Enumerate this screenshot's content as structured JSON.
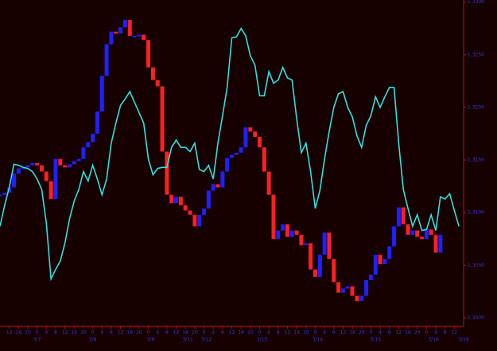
{
  "chart_data": {
    "type": "line",
    "background": "#160000",
    "axis_color": "#c01010",
    "label_color": "#3838d8",
    "x": [
      0,
      2,
      4,
      6,
      8,
      10,
      12,
      14,
      16,
      18,
      20,
      22,
      24,
      26,
      28,
      30,
      32,
      34,
      36,
      38,
      40,
      42,
      44,
      46,
      48,
      50,
      52,
      54,
      56,
      58,
      60,
      62,
      64,
      66,
      68,
      70,
      72,
      74,
      76,
      78,
      80,
      82,
      84,
      86,
      88,
      90,
      92,
      94,
      96,
      98,
      100,
      102,
      104,
      106,
      108,
      110,
      112,
      114,
      116,
      118,
      120,
      122,
      124,
      126,
      128,
      130,
      132,
      134,
      136,
      138,
      140,
      142,
      144,
      146,
      148,
      150,
      152,
      154,
      156,
      158,
      160,
      162,
      164,
      166,
      168,
      170,
      172,
      174,
      176,
      178,
      180,
      182,
      184,
      186,
      188,
      190,
      192,
      194,
      196,
      198
    ],
    "xlim": [
      0,
      200
    ],
    "xticks": [
      {
        "value": 4,
        "label": "12"
      },
      {
        "value": 8,
        "label": "16"
      },
      {
        "value": 12,
        "label": "20"
      },
      {
        "value": 16,
        "label": "0"
      },
      {
        "value": 20,
        "label": "4"
      },
      {
        "value": 24,
        "label": "8"
      },
      {
        "value": 28,
        "label": "12"
      },
      {
        "value": 32,
        "label": "16"
      },
      {
        "value": 36,
        "label": "20"
      },
      {
        "value": 40,
        "label": "0"
      },
      {
        "value": 44,
        "label": "4"
      },
      {
        "value": 48,
        "label": "8"
      },
      {
        "value": 52,
        "label": "12"
      },
      {
        "value": 56,
        "label": "16"
      },
      {
        "value": 60,
        "label": "20"
      },
      {
        "value": 64,
        "label": "0"
      },
      {
        "value": 68,
        "label": "4"
      },
      {
        "value": 72,
        "label": "8"
      },
      {
        "value": 76,
        "label": "12"
      },
      {
        "value": 80,
        "label": "16"
      },
      {
        "value": 84,
        "label": "20"
      },
      {
        "value": 88,
        "label": "0"
      },
      {
        "value": 92,
        "label": "4"
      },
      {
        "value": 96,
        "label": "8"
      },
      {
        "value": 100,
        "label": "12"
      },
      {
        "value": 104,
        "label": "16"
      },
      {
        "value": 108,
        "label": "20"
      },
      {
        "value": 112,
        "label": "0"
      },
      {
        "value": 116,
        "label": "4"
      },
      {
        "value": 120,
        "label": "8"
      },
      {
        "value": 124,
        "label": "12"
      },
      {
        "value": 128,
        "label": "16"
      },
      {
        "value": 132,
        "label": "20"
      },
      {
        "value": 136,
        "label": "0"
      },
      {
        "value": 140,
        "label": "4"
      },
      {
        "value": 144,
        "label": "8"
      },
      {
        "value": 148,
        "label": "12"
      },
      {
        "value": 152,
        "label": "16"
      },
      {
        "value": 156,
        "label": "20"
      },
      {
        "value": 160,
        "label": "0"
      },
      {
        "value": 164,
        "label": "4"
      },
      {
        "value": 168,
        "label": "8"
      },
      {
        "value": 172,
        "label": "12"
      },
      {
        "value": 176,
        "label": "16"
      },
      {
        "value": 180,
        "label": "20"
      },
      {
        "value": 184,
        "label": "0"
      },
      {
        "value": 188,
        "label": "4"
      },
      {
        "value": 192,
        "label": "8"
      },
      {
        "value": 196,
        "label": "12"
      }
    ],
    "date_ticks": [
      {
        "value": 16,
        "label": "3/7"
      },
      {
        "value": 40,
        "label": "3/8"
      },
      {
        "value": 65,
        "label": "3/9"
      },
      {
        "value": 81,
        "label": "3/11"
      },
      {
        "value": 89,
        "label": "3/12"
      },
      {
        "value": 113,
        "label": "3/13"
      },
      {
        "value": 137,
        "label": "3/14"
      },
      {
        "value": 162,
        "label": "3/15"
      },
      {
        "value": 187,
        "label": "3/16"
      },
      {
        "value": 200,
        "label": "3/18"
      }
    ],
    "ylim": [
      1.2992,
      1.3302
    ],
    "yticks": [
      {
        "value": 1.3,
        "label": "1.3000"
      },
      {
        "value": 1.305,
        "label": "1.3050"
      },
      {
        "value": 1.31,
        "label": "1.3100"
      },
      {
        "value": 1.315,
        "label": "1.3150"
      },
      {
        "value": 1.32,
        "label": "1.3200"
      },
      {
        "value": 1.325,
        "label": "1.3250"
      },
      {
        "value": 1.33,
        "label": "1.3300"
      }
    ],
    "series": [
      {
        "type": "bar",
        "up_color": "#2020ff",
        "down_color": "#ff2020",
        "values": [
          1.3117,
          1.3119,
          1.3124,
          1.3137,
          1.3142,
          1.3143,
          1.3145,
          1.3147,
          1.3145,
          1.3139,
          1.313,
          1.3113,
          1.3151,
          1.3145,
          1.3143,
          1.3146,
          1.3149,
          1.3151,
          1.3162,
          1.3167,
          1.3175,
          1.3196,
          1.323,
          1.326,
          1.3272,
          1.327,
          1.3276,
          1.3283,
          1.3268,
          1.3268,
          1.3269,
          1.3264,
          1.3238,
          1.3226,
          1.322,
          1.3158,
          1.3117,
          1.3109,
          1.3115,
          1.3107,
          1.3102,
          1.3098,
          1.3087,
          1.3098,
          1.3104,
          1.3121,
          1.3127,
          1.3124,
          1.3139,
          1.3152,
          1.3155,
          1.3157,
          1.3162,
          1.3181,
          1.3177,
          1.3172,
          1.3162,
          1.3139,
          1.3117,
          1.3075,
          1.3083,
          1.3089,
          1.3077,
          1.3083,
          1.3079,
          1.3069,
          1.3071,
          1.3046,
          1.3039,
          1.306,
          1.3081,
          1.3056,
          1.3034,
          1.3024,
          1.3028,
          1.303,
          1.3021,
          1.3016,
          1.3021,
          1.3036,
          1.3041,
          1.306,
          1.3051,
          1.3056,
          1.3068,
          1.3087,
          1.3105,
          1.3089,
          1.3079,
          1.3083,
          1.3077,
          1.3075,
          1.3084,
          1.3079,
          1.3062,
          1.3079,
          null,
          null,
          null,
          null
        ]
      },
      {
        "type": "line",
        "color": "#30e0e0",
        "values": [
          1.3087,
          1.3107,
          1.3124,
          1.3146,
          1.3145,
          1.3143,
          1.3142,
          1.3139,
          1.3132,
          1.3122,
          1.309,
          1.3037,
          1.3046,
          1.3054,
          1.3071,
          1.3094,
          1.3111,
          1.3122,
          1.3139,
          1.313,
          1.3145,
          1.3132,
          1.3117,
          1.3132,
          1.3166,
          1.3185,
          1.3202,
          1.3208,
          1.3215,
          1.3205,
          1.3195,
          1.3185,
          1.3151,
          1.3136,
          1.3142,
          1.3143,
          1.3143,
          1.3162,
          1.3169,
          1.3162,
          1.3162,
          1.3158,
          1.3166,
          1.3141,
          1.3139,
          1.3145,
          1.3132,
          1.3166,
          1.3192,
          1.3219,
          1.3266,
          1.3267,
          1.3275,
          1.3268,
          1.3249,
          1.324,
          1.3211,
          1.3211,
          1.3234,
          1.3223,
          1.3226,
          1.3238,
          1.3228,
          1.3226,
          1.3189,
          1.3157,
          1.3166,
          1.3139,
          1.3104,
          1.3121,
          1.3151,
          1.3177,
          1.32,
          1.3213,
          1.3215,
          1.32,
          1.3191,
          1.3173,
          1.3162,
          1.3183,
          1.3192,
          1.321,
          1.32,
          1.321,
          1.3219,
          1.3219,
          1.3166,
          1.3122,
          1.3104,
          1.3087,
          1.3098,
          1.3083,
          1.3084,
          1.3098,
          1.3083,
          1.3115,
          1.3113,
          1.3118,
          1.3102,
          1.3087
        ]
      }
    ]
  }
}
